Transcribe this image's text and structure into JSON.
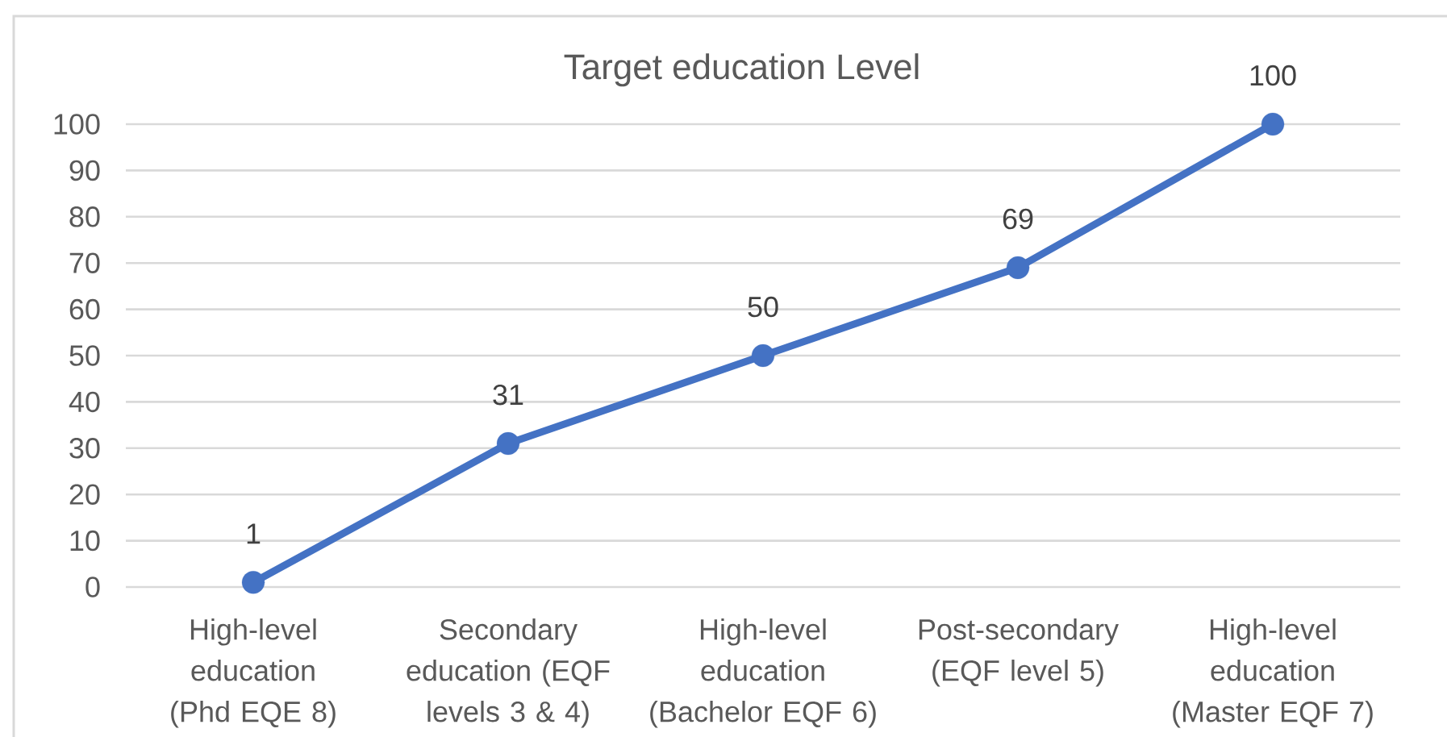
{
  "chart_data": {
    "type": "line",
    "title": "Target education Level",
    "categories": [
      "High-level education (Phd EQE 8)",
      "Secondary education (EQF levels 3 & 4)",
      "High-level education (Bachelor EQF 6)",
      "Post-secondary (EQF level 5)",
      "High-level education (Master EQF 7)"
    ],
    "values": [
      1,
      31,
      50,
      69,
      100
    ],
    "color": "#4472c4",
    "ylim": [
      0,
      100
    ],
    "yticks": [
      0,
      10,
      20,
      30,
      40,
      50,
      60,
      70,
      80,
      90,
      100
    ],
    "grid": "y",
    "data_labels": true,
    "marker": "circle",
    "line_style": "solid"
  }
}
